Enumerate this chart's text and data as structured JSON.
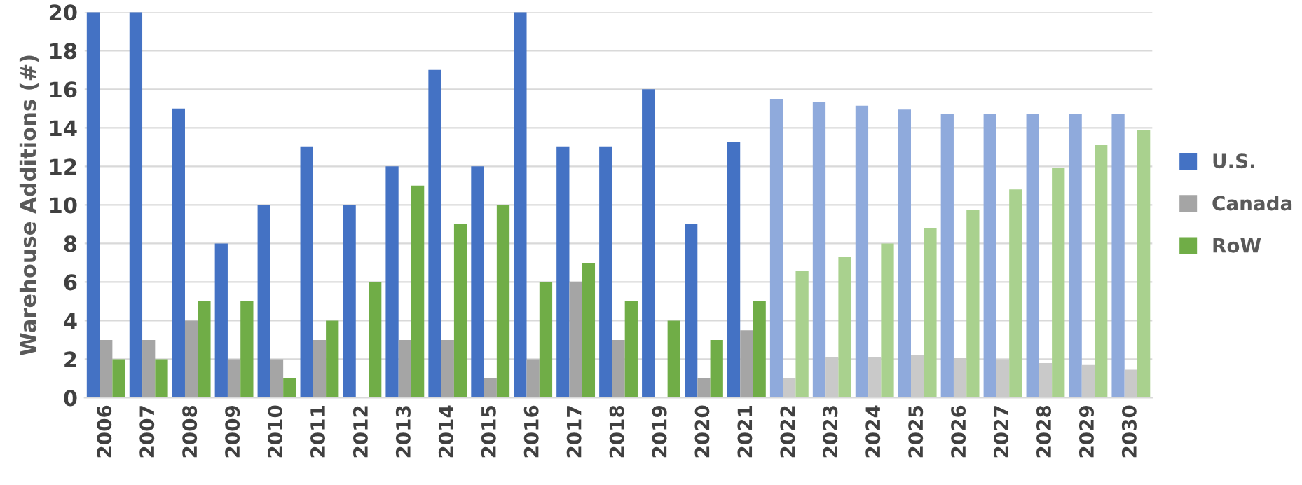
{
  "chart_data": {
    "type": "bar",
    "ylabel": "Warehouse Additions (#)",
    "categories": [
      "2006",
      "2007",
      "2008",
      "2009",
      "2010",
      "2011",
      "2012",
      "2013",
      "2014",
      "2015",
      "2016",
      "2017",
      "2018",
      "2019",
      "2020",
      "2021",
      "2022",
      "2023",
      "2024",
      "2025",
      "2026",
      "2027",
      "2028",
      "2029",
      "2030"
    ],
    "series": [
      {
        "name": "U.S.",
        "color": "#4472c4",
        "colors": [
          "#4472c4",
          "#4472c4",
          "#4472c4",
          "#4472c4",
          "#4472c4",
          "#4472c4",
          "#4472c4",
          "#4472c4",
          "#4472c4",
          "#4472c4",
          "#4472c4",
          "#4472c4",
          "#4472c4",
          "#4472c4",
          "#4472c4",
          "#4472c4",
          "#8faadc",
          "#8faadc",
          "#8faadc",
          "#8faadc",
          "#8faadc",
          "#8faadc",
          "#8faadc",
          "#8faadc",
          "#8faadc"
        ],
        "values": [
          20,
          20,
          15,
          8,
          10,
          13,
          10,
          12,
          17,
          12,
          20,
          13,
          13,
          16,
          9,
          13.25,
          15.5,
          15.35,
          15.15,
          14.95,
          14.7,
          14.7,
          14.7,
          14.7,
          14.7
        ]
      },
      {
        "name": "Canada",
        "color": "#a5a5a5",
        "colors": [
          "#a5a5a5",
          "#a5a5a5",
          "#a5a5a5",
          "#a5a5a5",
          "#a5a5a5",
          "#a5a5a5",
          "#a5a5a5",
          "#a5a5a5",
          "#a5a5a5",
          "#a5a5a5",
          "#a5a5a5",
          "#a5a5a5",
          "#a5a5a5",
          "#a5a5a5",
          "#a5a5a5",
          "#a5a5a5",
          "#c9c9c9",
          "#c9c9c9",
          "#c9c9c9",
          "#c9c9c9",
          "#c9c9c9",
          "#c9c9c9",
          "#c9c9c9",
          "#c9c9c9",
          "#c9c9c9"
        ],
        "values": [
          3,
          3,
          4,
          2,
          2,
          3,
          0,
          3,
          3,
          1,
          2,
          6,
          3,
          0,
          1,
          3.5,
          1.0,
          2.1,
          2.1,
          2.2,
          2.05,
          2.0,
          1.8,
          1.7,
          1.45
        ]
      },
      {
        "name": "RoW",
        "color": "#70ad47",
        "colors": [
          "#70ad47",
          "#70ad47",
          "#70ad47",
          "#70ad47",
          "#70ad47",
          "#70ad47",
          "#70ad47",
          "#70ad47",
          "#70ad47",
          "#70ad47",
          "#70ad47",
          "#70ad47",
          "#70ad47",
          "#70ad47",
          "#70ad47",
          "#70ad47",
          "#a9d18e",
          "#a9d18e",
          "#a9d18e",
          "#a9d18e",
          "#a9d18e",
          "#a9d18e",
          "#a9d18e",
          "#a9d18e",
          "#a9d18e"
        ],
        "values": [
          2,
          2,
          5,
          5,
          1,
          4,
          6,
          11,
          9,
          10,
          6,
          7,
          5,
          4,
          3,
          5,
          6.6,
          7.3,
          8.0,
          8.8,
          9.75,
          10.8,
          11.9,
          13.1,
          13.9
        ]
      }
    ],
    "ylim": [
      0,
      20
    ],
    "yticks": [
      0,
      2,
      4,
      6,
      8,
      10,
      12,
      14,
      16,
      18,
      20
    ],
    "grid": "y",
    "legend": "right"
  }
}
